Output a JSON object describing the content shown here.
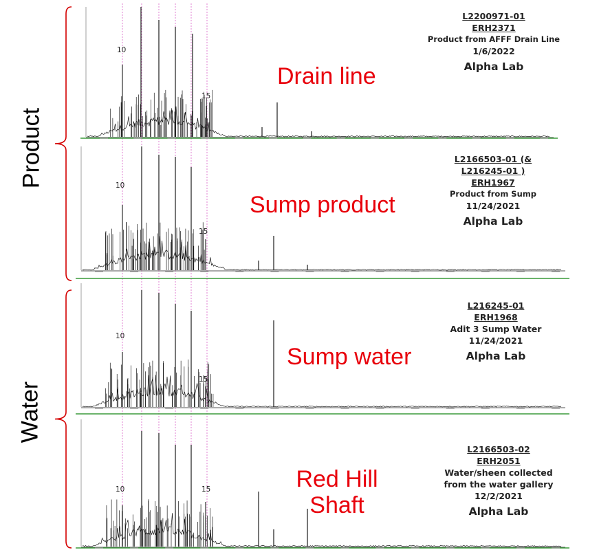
{
  "group_labels": {
    "product": "Product",
    "water": "Water"
  },
  "panels": [
    {
      "label_lines": [
        "Drain line"
      ],
      "sample_id_lines": [
        "L2200971-01",
        "ERH2371"
      ],
      "description_lines": [
        "Product from AFFF Drain Line",
        "1/6/2022"
      ],
      "lab": "Alpha Lab",
      "peak_markers": [
        "10",
        "15"
      ]
    },
    {
      "label_lines": [
        "Sump product"
      ],
      "sample_id_lines": [
        "L2166503-01 (&",
        "L216245-01 )",
        "ERH1967"
      ],
      "description_lines": [
        "Product from Sump",
        "11/24/2021"
      ],
      "lab": "Alpha Lab",
      "peak_markers": [
        "10",
        "15"
      ]
    },
    {
      "label_lines": [
        "Sump water"
      ],
      "sample_id_lines": [
        "L216245-01",
        "ERH1968"
      ],
      "description_lines": [
        "Adit 3 Sump Water",
        "11/24/2021"
      ],
      "lab": "Alpha Lab",
      "peak_markers": [
        "10",
        "15"
      ]
    },
    {
      "label_lines": [
        "Red Hill",
        "Shaft"
      ],
      "sample_id_lines": [
        "L2166503-02",
        "ERH2051"
      ],
      "description_lines": [
        "Water/sheen collected",
        "from the water gallery",
        "12/2/2021"
      ],
      "lab": "Alpha Lab",
      "peak_markers": [
        "10",
        "15"
      ]
    }
  ],
  "colors": {
    "label_red": "#e8000b",
    "bracket_red": "#d40000",
    "reference_line_pink": "#e07fd0",
    "trace": "#1a1a1a",
    "baseline_green": "#3a9a3a"
  }
}
